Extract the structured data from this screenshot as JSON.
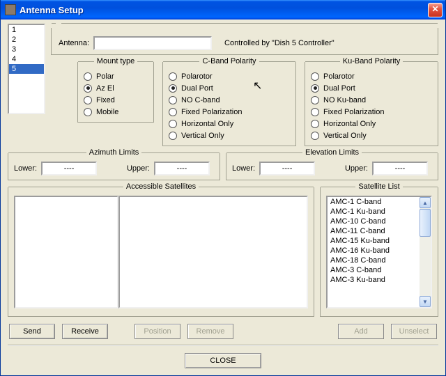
{
  "colors": {
    "face": "#ece9d8",
    "title_gradient": [
      "#3a95ff",
      "#0054e3",
      "#0066ff"
    ],
    "selection": "#316ac5",
    "border": "#a0a090",
    "disabled_text": "#a0a090"
  },
  "window": {
    "title": "Antenna Setup"
  },
  "antenna_list": {
    "items": [
      "1",
      "2",
      "3",
      "4",
      "5"
    ],
    "selected_index": 4
  },
  "antenna_row": {
    "label": "Antenna:",
    "name_value": "",
    "controlled_by": "Controlled by \"Dish 5 Controller\""
  },
  "mount_type": {
    "title": "Mount type",
    "options": [
      "Polar",
      "Az El",
      "Fixed",
      "Mobile"
    ],
    "selected_index": 1
  },
  "c_band": {
    "title": "C-Band Polarity",
    "options": [
      "Polarotor",
      "Dual Port",
      "NO C-band",
      "Fixed Polarization",
      "Horizontal Only",
      "Vertical Only"
    ],
    "selected_index": 1
  },
  "ku_band": {
    "title": "Ku-Band Polarity",
    "options": [
      "Polarotor",
      "Dual Port",
      "NO Ku-band",
      "Fixed Polarization",
      "Horizontal Only",
      "Vertical Only"
    ],
    "selected_index": 1
  },
  "azimuth": {
    "title": "Azimuth Limits",
    "lower_label": "Lower:",
    "lower_value": "----",
    "upper_label": "Upper:",
    "upper_value": "----"
  },
  "elevation": {
    "title": "Elevation Limits",
    "lower_label": "Lower:",
    "lower_value": "----",
    "upper_label": "Upper:",
    "upper_value": "----"
  },
  "accessible_satellites": {
    "title": "Accessible Satellites"
  },
  "satellite_list": {
    "title": "Satellite List",
    "items": [
      "AMC-1  C-band",
      "AMC-1  Ku-band",
      "AMC-10 C-band",
      "AMC-11  C-band",
      "AMC-15  Ku-band",
      "AMC-16  Ku-band",
      "AMC-18  C-band",
      "AMC-3  C-band",
      "AMC-3  Ku-band"
    ]
  },
  "buttons": {
    "send": "Send",
    "receive": "Receive",
    "position": "Position",
    "remove": "Remove",
    "add": "Add",
    "unselect": "Unselect",
    "close": "CLOSE"
  },
  "button_states": {
    "send": true,
    "receive": true,
    "position": false,
    "remove": false,
    "add": false,
    "unselect": false,
    "close": true
  }
}
